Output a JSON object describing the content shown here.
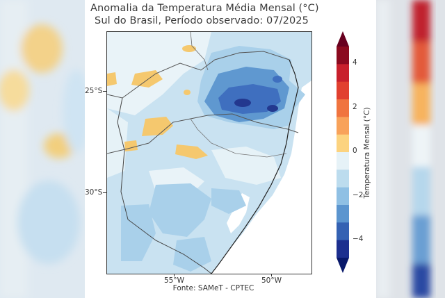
{
  "title_line1": "Anomalia da Temperatura Média Mensal (°C)",
  "title_line2": "Sul do Brasil, Período observado: 07/2025",
  "y_ticks": [
    "25°S",
    "30°S"
  ],
  "x_ticks": [
    "55°W",
    "50°W"
  ],
  "source": "Fonte: SAMeT - CPTEC",
  "colorbar": {
    "label": "Temperatura Mensal (°C)",
    "ticks": [
      "4",
      "2",
      "0",
      "−2",
      "−4"
    ],
    "levels": [
      "#8b0a1f",
      "#c8202c",
      "#e1402f",
      "#f0743f",
      "#f8a25a",
      "#fcd37f",
      "#e6f2f7",
      "#bcdcee",
      "#8fc0e4",
      "#5b95cf",
      "#3462b3",
      "#1c2f8f"
    ],
    "extend_min_color": "#08186a",
    "extend_max_color": "#67001f"
  },
  "map_colors": {
    "land": "#c9e2f1",
    "near_zero": "#e9f3f8",
    "cold_1": "#a9d0ea",
    "cold_2": "#5f98d0",
    "cold_3": "#3f6fbf",
    "cold_4": "#23388f",
    "warm_1": "#f5c86e",
    "ocean": "#ffffff"
  }
}
